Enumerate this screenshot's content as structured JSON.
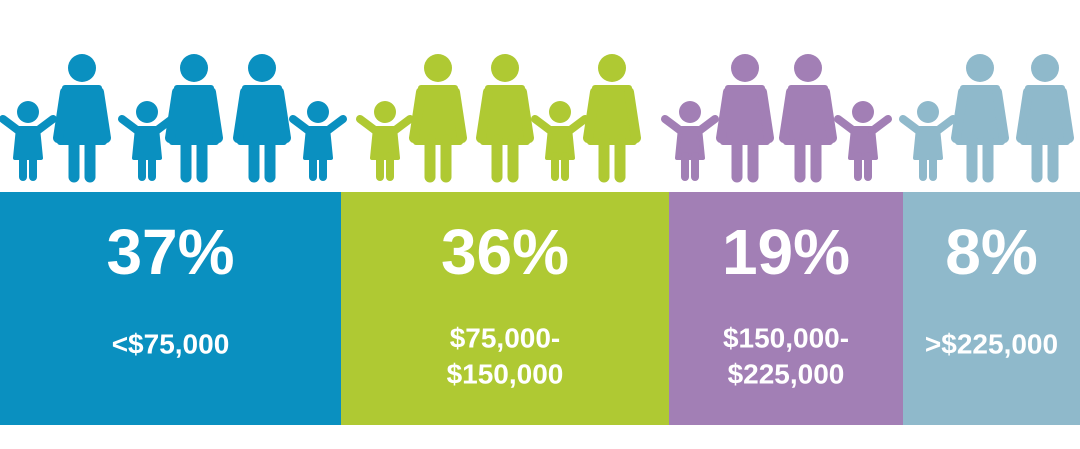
{
  "segments": [
    {
      "percent": "37%",
      "label": [
        "<$75,000"
      ],
      "color": "#0a90c0"
    },
    {
      "percent": "36%",
      "label": [
        "$75,000-",
        "$150,000"
      ],
      "color": "#afc933"
    },
    {
      "percent": "19%",
      "label": [
        "$150,000-",
        "$225,000"
      ],
      "color": "#a27fb5"
    },
    {
      "percent": "8%",
      "label": [
        ">$225,000"
      ],
      "color": "#8fb9cb"
    }
  ]
}
